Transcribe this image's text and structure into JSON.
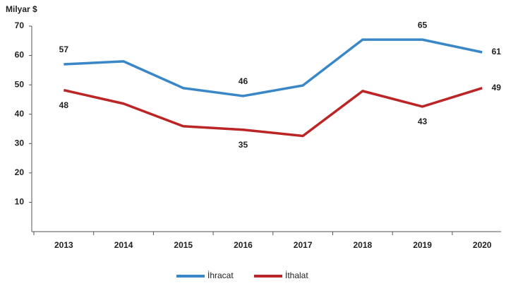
{
  "chart_data": {
    "type": "line",
    "y_label": "Milyar $",
    "categories": [
      "2013",
      "2014",
      "2015",
      "2016",
      "2017",
      "2018",
      "2019",
      "2020"
    ],
    "series": [
      {
        "name": "İhracat",
        "color": "#3a87c8",
        "values": [
          57.0,
          58.0,
          48.9,
          46.2,
          49.8,
          65.4,
          65.4,
          61.1
        ],
        "value_labels": [
          "57",
          null,
          null,
          "46",
          null,
          null,
          "65",
          "61"
        ]
      },
      {
        "name": "İthalat",
        "color": "#bb2526",
        "values": [
          48.2,
          43.6,
          35.9,
          34.7,
          32.6,
          47.9,
          42.6,
          48.9
        ],
        "value_labels": [
          "48",
          null,
          null,
          "35",
          null,
          null,
          "43",
          "49"
        ]
      }
    ],
    "ylim": [
      0,
      70
    ],
    "yticks": [
      10,
      20,
      30,
      40,
      50,
      60,
      70
    ],
    "legend": "bottom"
  }
}
